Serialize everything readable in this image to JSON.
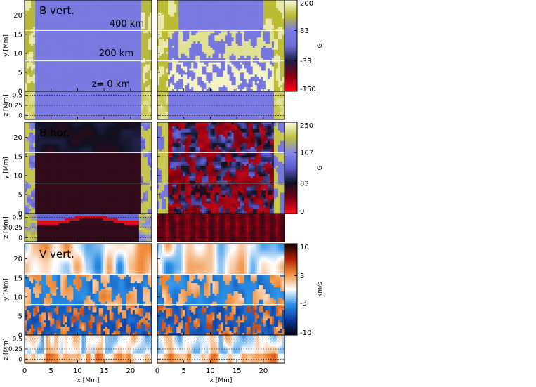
{
  "chart_data": {
    "type": "heatmap",
    "x_axis": {
      "label": "x [Mm]",
      "range": [
        0,
        24
      ],
      "ticks": [
        0,
        5,
        10,
        15,
        20
      ]
    },
    "y_axis": {
      "label": "y [Mm]",
      "range": [
        0,
        24
      ],
      "ticks": [
        0,
        5,
        10,
        15,
        20
      ]
    },
    "z_axis": {
      "label": "z [Mm]",
      "range": [
        -0.1,
        0.6
      ],
      "ticks": [
        0,
        0.25,
        0.5
      ],
      "tick_labels": [
        "0",
        "0.25",
        "0.5"
      ]
    },
    "height_levels": [
      {
        "label": "400 km",
        "y": 16
      },
      {
        "label": "200 km",
        "y": 8
      },
      {
        "label": "z= 0 km",
        "y": 0
      }
    ],
    "rows": [
      {
        "title": "B vert.",
        "colorbar": {
          "unit": "G",
          "min": -150,
          "max": 200,
          "ticks": [
            200,
            83,
            -33,
            -150
          ],
          "tick_labels": [
            "200",
            "83",
            "-33",
            "-150"
          ],
          "colors": [
            "#ff0018",
            "#8a0010",
            "#1e1e46",
            "#6e6ed6",
            "#7c7ce4",
            "#bcbc30",
            "#fbfbdc"
          ]
        }
      },
      {
        "title": "B hor.",
        "colorbar": {
          "unit": "G",
          "min": 0,
          "max": 250,
          "ticks": [
            250,
            167,
            83,
            0
          ],
          "tick_labels": [
            "250",
            "167",
            "83",
            "0"
          ],
          "colors": [
            "#ff1020",
            "#7a0010",
            "#101020",
            "#5a5acc",
            "#8888e8",
            "#c0c040",
            "#fbfbdc"
          ]
        }
      },
      {
        "title": "V vert.",
        "colorbar": {
          "unit": "km/s",
          "min": -10,
          "max": 10,
          "ticks": [
            10,
            3,
            -3,
            -10
          ],
          "tick_labels": [
            "10",
            "3",
            "-3",
            "-10"
          ],
          "colors": [
            "#000010",
            "#0a3aa0",
            "#2a90e6",
            "#ffffff",
            "#f09040",
            "#b02000",
            "#100000"
          ]
        }
      }
    ]
  }
}
